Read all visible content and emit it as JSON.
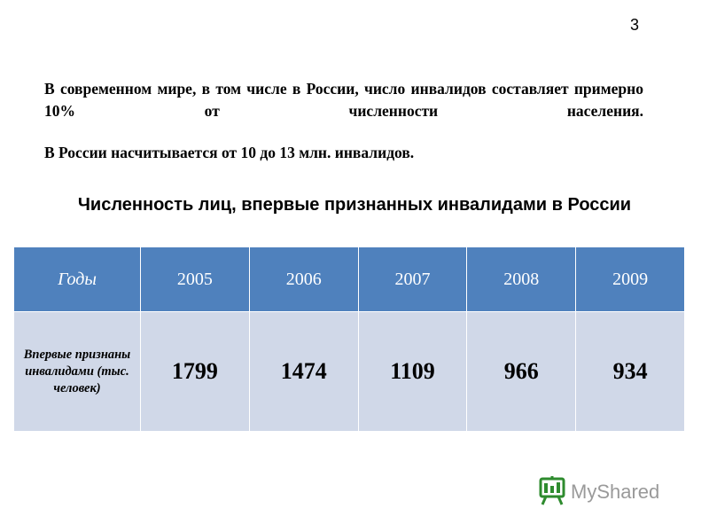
{
  "page_number": "3",
  "intro": {
    "line1": "В современном мире, в том числе в России, число инвалидов составляет примерно 10% от численности населения.",
    "line2": "В России насчитывается от 10 до 13 млн. инвалидов."
  },
  "table_title": "Численность лиц, впервые признанных инвалидами в России",
  "table": {
    "header_label": "Годы",
    "years": [
      "2005",
      "2006",
      "2007",
      "2008",
      "2009"
    ],
    "row_label": "Впервые признаны инвалидами (тыс. человек)",
    "values": [
      "1799",
      "1474",
      "1109",
      "966",
      "934"
    ]
  },
  "watermark": {
    "text": "MyShared",
    "colors": {
      "icon": "#2e8b2e",
      "text": "#9a9a9a"
    }
  }
}
